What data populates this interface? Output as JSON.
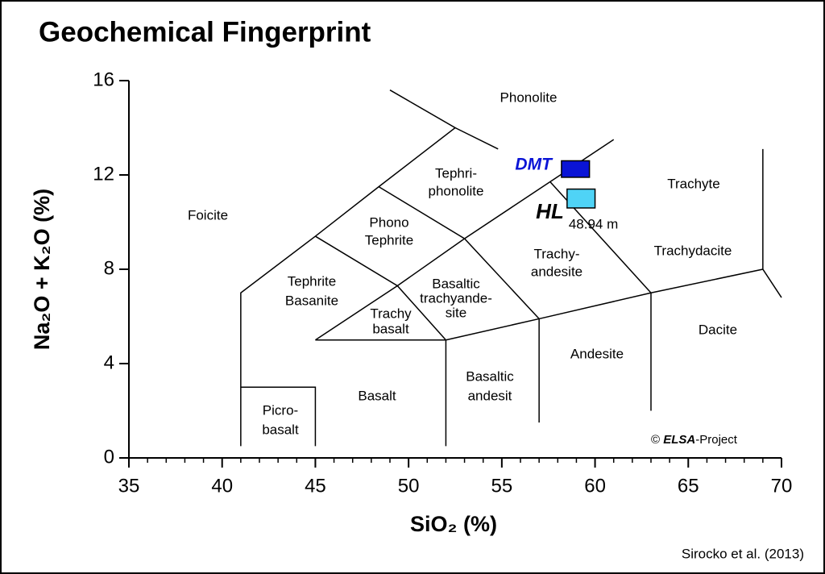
{
  "chart_data": {
    "type": "tas",
    "title": "Geochemical Fingerprint",
    "x_label": "SiO₂ (%)",
    "y_label": "Na₂O + K₂O (%)",
    "xlim": [
      35,
      70
    ],
    "ylim": [
      0,
      16
    ],
    "xticks": [
      35,
      40,
      45,
      50,
      55,
      60,
      65,
      70
    ],
    "yticks": [
      0,
      4,
      8,
      12,
      16
    ],
    "xminorticks": [
      36,
      37,
      38,
      39,
      41,
      42,
      43,
      44,
      46,
      47,
      48,
      49,
      51,
      52,
      53,
      54,
      56,
      57,
      58,
      59,
      61,
      62,
      63,
      64,
      66,
      67,
      68,
      69
    ],
    "boundaries": [
      {
        "x": [
          41,
          41,
          45,
          48.4,
          52.5,
          49
        ],
        "y": [
          0.5,
          7,
          9.4,
          11.5,
          14,
          15.6
        ]
      },
      {
        "x": [
          52.5,
          54.8
        ],
        "y": [
          14,
          13.1
        ]
      },
      {
        "x": [
          41,
          45,
          45
        ],
        "y": [
          3,
          3,
          0.5
        ]
      },
      {
        "x": [
          45,
          52,
          52
        ],
        "y": [
          5,
          5,
          0.5
        ]
      },
      {
        "x": [
          52,
          57,
          63,
          69,
          70
        ],
        "y": [
          5,
          5.9,
          7,
          8,
          6.8
        ]
      },
      {
        "x": [
          69,
          69
        ],
        "y": [
          8,
          13.1
        ]
      },
      {
        "x": [
          57,
          57
        ],
        "y": [
          1.5,
          5.9
        ]
      },
      {
        "x": [
          63,
          63
        ],
        "y": [
          2,
          7
        ]
      },
      {
        "x": [
          45,
          49.4,
          53,
          61
        ],
        "y": [
          5,
          7.3,
          9.3,
          13.5
        ]
      },
      {
        "x": [
          45,
          49.4,
          52
        ],
        "y": [
          9.4,
          7.3,
          5
        ]
      },
      {
        "x": [
          48.4,
          53,
          57
        ],
        "y": [
          11.5,
          9.3,
          5.9
        ]
      },
      {
        "x": [
          57.6,
          63
        ],
        "y": [
          11.7,
          7
        ]
      }
    ],
    "fields": [
      [
        "Phonolite"
      ],
      [
        "Tephri-",
        "phonolite"
      ],
      [
        "Foicite"
      ],
      [
        "Phono",
        "Tephrite"
      ],
      [
        "Tephrite",
        "Basanite"
      ],
      [
        "Trachy",
        "basalt"
      ],
      [
        "Basaltic",
        "trachyande-",
        "site"
      ],
      [
        "Trachy-",
        "andesite"
      ],
      [
        "Trachyte"
      ],
      [
        "Trachydacite"
      ],
      [
        "Dacite"
      ],
      [
        "Andesite"
      ],
      [
        "Basaltic",
        "andesit"
      ],
      [
        "Basalt"
      ],
      [
        "Picro-",
        "basalt"
      ]
    ],
    "samples": [
      {
        "name": "DMT",
        "color": "#0a14d6",
        "x": [
          58.2,
          59.7
        ],
        "y": [
          11.9,
          12.6
        ]
      },
      {
        "name": "HL",
        "color": "#4fd3f6",
        "x": [
          58.5,
          60
        ],
        "y": [
          10.6,
          11.4
        ],
        "note": "48.94 m"
      }
    ],
    "copyright": [
      "© ",
      "ELSA",
      "-Project"
    ],
    "source": "Sirocko et al. (2013)"
  }
}
